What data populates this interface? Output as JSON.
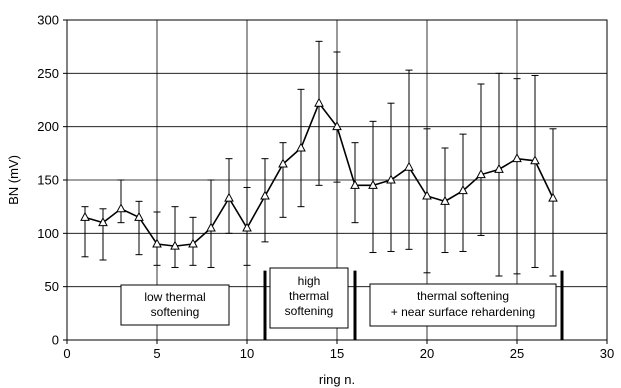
{
  "chart_data": {
    "type": "line",
    "xlabel": "ring n.",
    "ylabel": "BN (mV)",
    "xlim": [
      0,
      30
    ],
    "ylim": [
      0,
      300
    ],
    "xticks": [
      0,
      5,
      10,
      15,
      20,
      25,
      30
    ],
    "yticks": [
      0,
      50,
      100,
      150,
      200,
      250,
      300
    ],
    "grid": true,
    "marker": "triangle-open",
    "series": [
      {
        "x": [
          1,
          2,
          3,
          4,
          5,
          6,
          7,
          8,
          9,
          10,
          11,
          12,
          13,
          14,
          15,
          16,
          17,
          18,
          19,
          20,
          21,
          22,
          23,
          24,
          25,
          26,
          27
        ],
        "values": [
          115,
          110,
          123,
          115,
          90,
          88,
          90,
          105,
          133,
          105,
          135,
          165,
          180,
          222,
          200,
          145,
          145,
          150,
          162,
          135,
          130,
          140,
          155,
          160,
          170,
          168,
          133
        ],
        "err_low": [
          78,
          75,
          110,
          80,
          70,
          68,
          70,
          68,
          100,
          70,
          92,
          115,
          125,
          145,
          148,
          110,
          82,
          83,
          85,
          63,
          82,
          83,
          98,
          60,
          62,
          68,
          60
        ],
        "err_high": [
          125,
          123,
          150,
          130,
          120,
          125,
          115,
          150,
          170,
          143,
          170,
          185,
          235,
          280,
          270,
          185,
          205,
          222,
          253,
          198,
          180,
          193,
          240,
          250,
          245,
          248,
          198
        ]
      }
    ],
    "dividers": [
      11,
      16,
      27.5
    ],
    "annotations": [
      {
        "id": "low",
        "lines": [
          "low thermal",
          "softening"
        ]
      },
      {
        "id": "high",
        "lines": [
          "high",
          "thermal",
          "softening"
        ]
      },
      {
        "id": "rehard",
        "lines": [
          "thermal softening",
          "+ near surface rehardening"
        ]
      }
    ]
  }
}
